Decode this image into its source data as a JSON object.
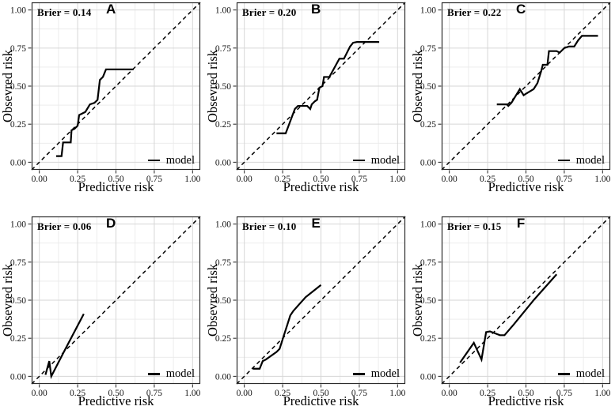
{
  "figure": {
    "xlabel": "Predictive risk",
    "ylabel": "Obsevred risk",
    "legend_label": "model",
    "tick_labels": [
      "0.00",
      "0.25",
      "0.50",
      "0.75",
      "1.00"
    ],
    "tick_values": [
      0,
      0.25,
      0.5,
      0.75,
      1
    ],
    "minor_tick_values": [
      0.125,
      0.375,
      0.625,
      0.875
    ],
    "axis_range": [
      0,
      1
    ],
    "reference_line": "y = x dashed diagonal",
    "grid": "major and minor gridlines on",
    "legend_position": "inside bottom-right",
    "colors": {
      "background": "#ffffff",
      "panel_border": "#2b2b2b",
      "grid_major": "#d6d6d6",
      "grid_minor": "#eaeaea",
      "line": "#000000",
      "text": "#000000"
    }
  },
  "chart_data": [
    {
      "panel": "A",
      "type": "line",
      "annotation": "Brier = 0.14",
      "brier": 0.14,
      "xlim": [
        0,
        1
      ],
      "ylim": [
        0,
        1
      ],
      "series": [
        {
          "name": "model",
          "points": [
            [
              0.11,
              0.04
            ],
            [
              0.145,
              0.04
            ],
            [
              0.155,
              0.13
            ],
            [
              0.205,
              0.13
            ],
            [
              0.21,
              0.21
            ],
            [
              0.23,
              0.22
            ],
            [
              0.25,
              0.24
            ],
            [
              0.26,
              0.31
            ],
            [
              0.3,
              0.33
            ],
            [
              0.33,
              0.38
            ],
            [
              0.36,
              0.39
            ],
            [
              0.38,
              0.41
            ],
            [
              0.395,
              0.54
            ],
            [
              0.415,
              0.56
            ],
            [
              0.435,
              0.61
            ],
            [
              0.615,
              0.61
            ]
          ]
        }
      ]
    },
    {
      "panel": "B",
      "type": "line",
      "annotation": "Brier = 0.20",
      "brier": 0.2,
      "xlim": [
        0,
        1
      ],
      "ylim": [
        0,
        1
      ],
      "series": [
        {
          "name": "model",
          "points": [
            [
              0.21,
              0.19
            ],
            [
              0.27,
              0.19
            ],
            [
              0.33,
              0.35
            ],
            [
              0.35,
              0.37
            ],
            [
              0.41,
              0.37
            ],
            [
              0.43,
              0.35
            ],
            [
              0.44,
              0.38
            ],
            [
              0.46,
              0.4
            ],
            [
              0.475,
              0.41
            ],
            [
              0.49,
              0.49
            ],
            [
              0.51,
              0.5
            ],
            [
              0.52,
              0.56
            ],
            [
              0.555,
              0.56
            ],
            [
              0.62,
              0.68
            ],
            [
              0.65,
              0.68
            ],
            [
              0.69,
              0.76
            ],
            [
              0.71,
              0.785
            ],
            [
              0.735,
              0.79
            ],
            [
              0.88,
              0.79
            ]
          ]
        }
      ]
    },
    {
      "panel": "C",
      "type": "line",
      "annotation": "Brier = 0.22",
      "brier": 0.22,
      "xlim": [
        0,
        1
      ],
      "ylim": [
        0,
        1
      ],
      "series": [
        {
          "name": "model",
          "points": [
            [
              0.31,
              0.38
            ],
            [
              0.375,
              0.38
            ],
            [
              0.385,
              0.37
            ],
            [
              0.405,
              0.39
            ],
            [
              0.46,
              0.48
            ],
            [
              0.485,
              0.44
            ],
            [
              0.5,
              0.45
            ],
            [
              0.55,
              0.48
            ],
            [
              0.575,
              0.52
            ],
            [
              0.6,
              0.6
            ],
            [
              0.61,
              0.64
            ],
            [
              0.64,
              0.64
            ],
            [
              0.65,
              0.73
            ],
            [
              0.7,
              0.73
            ],
            [
              0.72,
              0.72
            ],
            [
              0.75,
              0.75
            ],
            [
              0.78,
              0.76
            ],
            [
              0.815,
              0.76
            ],
            [
              0.84,
              0.8
            ],
            [
              0.865,
              0.83
            ],
            [
              0.97,
              0.83
            ]
          ]
        }
      ]
    },
    {
      "panel": "D",
      "type": "line",
      "annotation": "Brier = 0.06",
      "brier": 0.06,
      "xlim": [
        0,
        1
      ],
      "ylim": [
        0,
        1
      ],
      "series": [
        {
          "name": "model",
          "points": [
            [
              0.04,
              0.01
            ],
            [
              0.065,
              0.1
            ],
            [
              0.078,
              0.0
            ],
            [
              0.16,
              0.16
            ],
            [
              0.29,
              0.41
            ]
          ]
        }
      ]
    },
    {
      "panel": "E",
      "type": "line",
      "annotation": "Brier = 0.10",
      "brier": 0.1,
      "xlim": [
        0,
        1
      ],
      "ylim": [
        0,
        1
      ],
      "series": [
        {
          "name": "model",
          "points": [
            [
              0.055,
              0.05
            ],
            [
              0.1,
              0.05
            ],
            [
              0.12,
              0.1
            ],
            [
              0.14,
              0.11
            ],
            [
              0.21,
              0.16
            ],
            [
              0.23,
              0.18
            ],
            [
              0.3,
              0.4
            ],
            [
              0.32,
              0.43
            ],
            [
              0.4,
              0.52
            ],
            [
              0.5,
              0.6
            ]
          ]
        }
      ]
    },
    {
      "panel": "F",
      "type": "line",
      "annotation": "Brier = 0.15",
      "brier": 0.15,
      "xlim": [
        0,
        1
      ],
      "ylim": [
        0,
        1
      ],
      "series": [
        {
          "name": "model",
          "points": [
            [
              0.07,
              0.09
            ],
            [
              0.16,
              0.22
            ],
            [
              0.21,
              0.11
            ],
            [
              0.24,
              0.29
            ],
            [
              0.265,
              0.295
            ],
            [
              0.33,
              0.27
            ],
            [
              0.36,
              0.27
            ],
            [
              0.42,
              0.34
            ],
            [
              0.55,
              0.5
            ],
            [
              0.7,
              0.67
            ]
          ]
        }
      ]
    }
  ]
}
